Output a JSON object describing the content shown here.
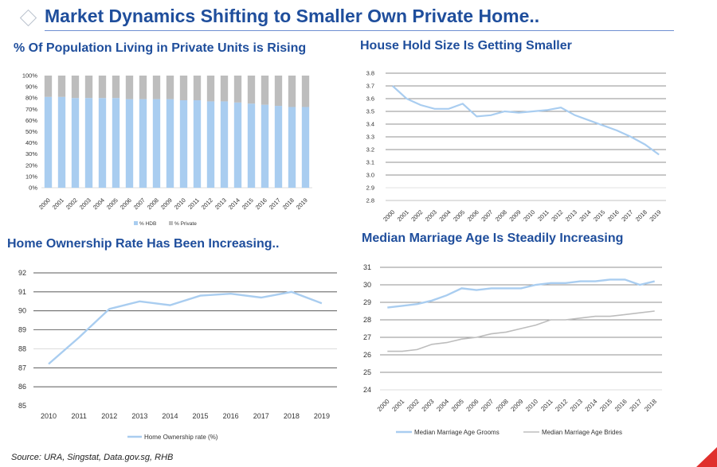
{
  "page": {
    "title": "Market Dynamics Shifting to Smaller Own Private Home..",
    "source": "Source: URA, Singstat, Data.gov.sg, RHB"
  },
  "colors": {
    "title": "#1f4e9c",
    "hdb": "#a9cdf0",
    "private": "#bdbdbd",
    "line_blue": "#a9cdf0",
    "line_grey": "#bdbdbd",
    "accent_red": "#e0302d"
  },
  "chart_data": [
    {
      "id": "private-units",
      "type": "bar",
      "stacked": true,
      "percent": true,
      "title": "% Of Population Living in Private Units is Rising",
      "categories": [
        "2000",
        "2001",
        "2002",
        "2003",
        "2004",
        "2005",
        "2006",
        "2007",
        "2008",
        "2009",
        "2010",
        "2011",
        "2012",
        "2013",
        "2014",
        "2015",
        "2016",
        "2017",
        "2018",
        "2019"
      ],
      "series": [
        {
          "name": "% HDB",
          "color": "#a9cdf0",
          "values": [
            81,
            81,
            80,
            80,
            80,
            80,
            79,
            79,
            79,
            79,
            78,
            78,
            77,
            77,
            76,
            75,
            74,
            73,
            72,
            72
          ]
        },
        {
          "name": "% Private",
          "color": "#bdbdbd",
          "values": [
            19,
            19,
            20,
            20,
            20,
            20,
            21,
            21,
            21,
            21,
            22,
            22,
            23,
            23,
            24,
            25,
            26,
            27,
            28,
            28
          ]
        }
      ],
      "yticks": [
        "0%",
        "10%",
        "20%",
        "30%",
        "40%",
        "50%",
        "60%",
        "70%",
        "80%",
        "90%",
        "100%"
      ],
      "ylim": [
        0,
        100
      ],
      "legend": "bottom"
    },
    {
      "id": "household-size",
      "type": "line",
      "title": "House Hold Size Is Getting Smaller",
      "categories": [
        "2000",
        "2001",
        "2002",
        "2003",
        "2004",
        "2005",
        "2006",
        "2007",
        "2008",
        "2009",
        "2010",
        "2011",
        "2012",
        "2013",
        "2014",
        "2015",
        "2016",
        "2017",
        "2018",
        "2019"
      ],
      "series": [
        {
          "color": "#a9cdf0",
          "values": [
            3.7,
            3.6,
            3.55,
            3.52,
            3.52,
            3.56,
            3.46,
            3.47,
            3.5,
            3.49,
            3.5,
            3.51,
            3.53,
            3.47,
            3.43,
            3.39,
            3.35,
            3.3,
            3.24,
            3.16
          ]
        }
      ],
      "yticks": [
        "2.8",
        "2.9",
        "3.0",
        "3.1",
        "3.2",
        "3.3",
        "3.4",
        "3.5",
        "3.6",
        "3.7",
        "3.8"
      ],
      "ylim": [
        2.8,
        3.8
      ],
      "grid": true
    },
    {
      "id": "home-ownership",
      "type": "line",
      "title": "Home Ownership Rate Has Been Increasing..",
      "categories": [
        "2010",
        "2011",
        "2012",
        "2013",
        "2014",
        "2015",
        "2016",
        "2017",
        "2018",
        "2019"
      ],
      "series": [
        {
          "name": "Home Ownership rate (%)",
          "color": "#a9cdf0",
          "values": [
            87.2,
            88.6,
            90.1,
            90.5,
            90.3,
            90.8,
            90.9,
            90.7,
            91.0,
            90.4
          ]
        }
      ],
      "yticks": [
        "85",
        "86",
        "87",
        "88",
        "89",
        "90",
        "91",
        "92"
      ],
      "ylim": [
        85,
        92
      ],
      "grid": true,
      "legend": "bottom"
    },
    {
      "id": "marriage-age",
      "type": "line",
      "title": "Median Marriage Age Is Steadily Increasing",
      "categories": [
        "2000",
        "2001",
        "2002",
        "2003",
        "2004",
        "2005",
        "2006",
        "2007",
        "2008",
        "2009",
        "2010",
        "2011",
        "2012",
        "2013",
        "2014",
        "2015",
        "2016",
        "2017",
        "2018"
      ],
      "series": [
        {
          "name": "Median Marriage Age Grooms",
          "color": "#a9cdf0",
          "values": [
            28.7,
            28.8,
            28.9,
            29.1,
            29.4,
            29.8,
            29.7,
            29.8,
            29.8,
            29.8,
            30.0,
            30.1,
            30.1,
            30.2,
            30.2,
            30.3,
            30.3,
            30.0,
            30.2
          ]
        },
        {
          "name": "Median Marriage Age Brides",
          "color": "#bdbdbd",
          "values": [
            26.2,
            26.2,
            26.3,
            26.6,
            26.7,
            26.9,
            27.0,
            27.2,
            27.3,
            27.5,
            27.7,
            28.0,
            28.0,
            28.1,
            28.2,
            28.2,
            28.3,
            28.4,
            28.5
          ]
        }
      ],
      "yticks": [
        "24",
        "25",
        "26",
        "27",
        "28",
        "29",
        "30",
        "31"
      ],
      "ylim": [
        24,
        31
      ],
      "grid": true,
      "legend": "bottom"
    }
  ]
}
